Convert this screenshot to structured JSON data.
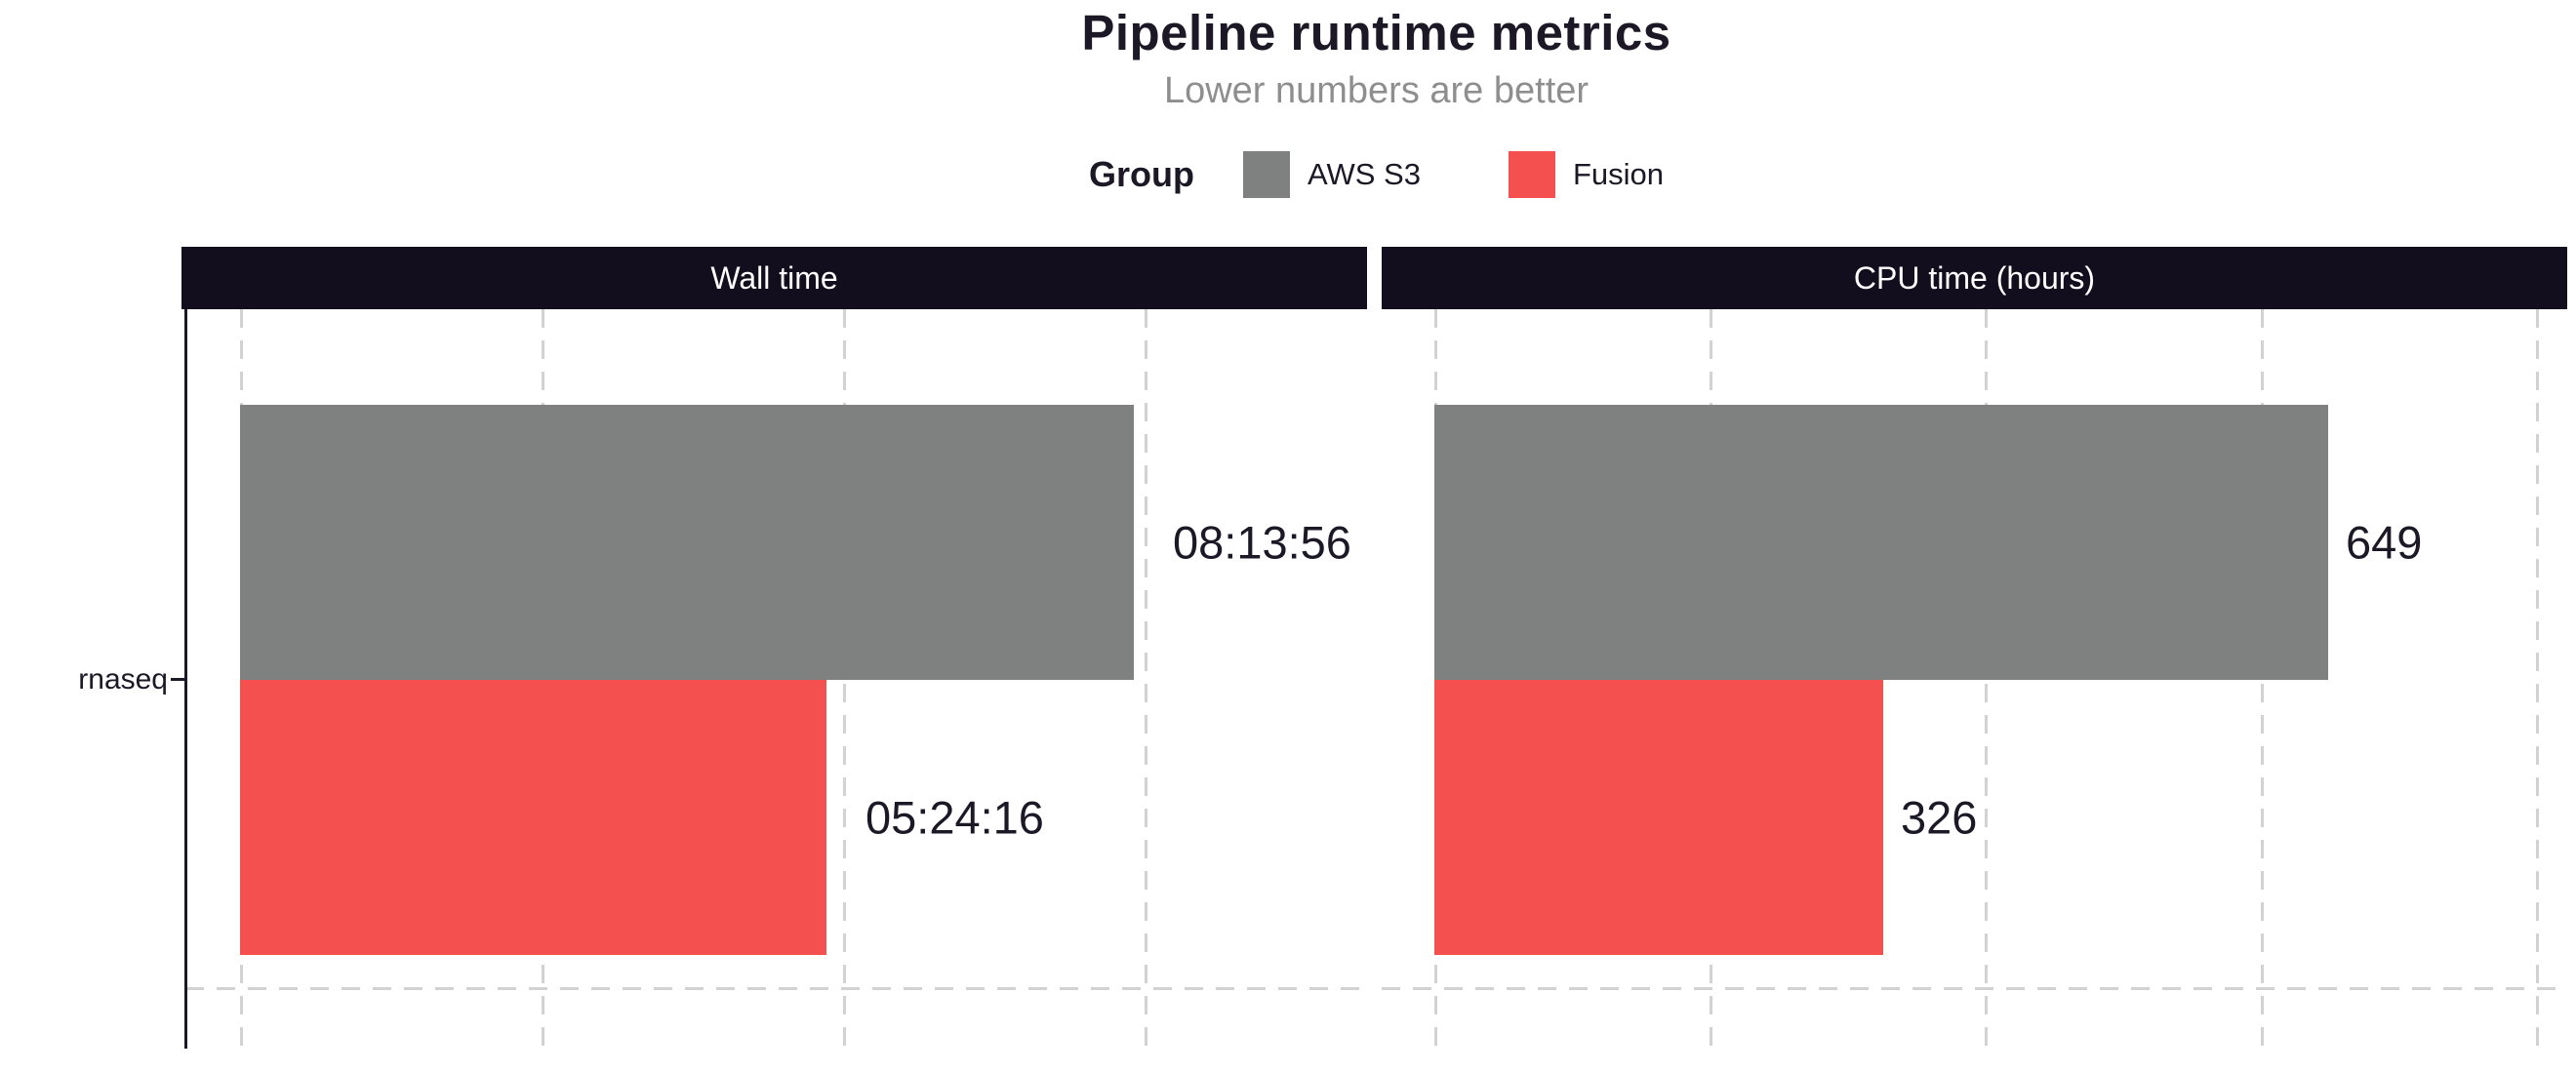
{
  "chart_data": {
    "type": "bar",
    "orientation": "horizontal",
    "title": "Pipeline runtime metrics",
    "subtitle": "Lower numbers are better",
    "categories": [
      "rnaseq"
    ],
    "legend": {
      "title": "Group",
      "position": "top",
      "items": [
        {
          "name": "AWS S3",
          "color": "#7f8080"
        },
        {
          "name": "Fusion",
          "color": "#f4504f"
        }
      ]
    },
    "facets": [
      {
        "title": "Wall time",
        "unit": "seconds",
        "xlim": [
          0,
          37000
        ],
        "gridlines": [
          0,
          10000,
          20000,
          30000
        ],
        "bars": [
          {
            "group": "AWS S3",
            "category": "rnaseq",
            "value": 29636,
            "label": "08:13:56"
          },
          {
            "group": "Fusion",
            "category": "rnaseq",
            "value": 19456,
            "label": "05:24:16"
          }
        ]
      },
      {
        "title": "CPU time (hours)",
        "unit": "hours",
        "xlim": [
          0,
          823
        ],
        "gridlines": [
          0,
          200,
          400,
          600,
          800
        ],
        "bars": [
          {
            "group": "AWS S3",
            "category": "rnaseq",
            "value": 649,
            "label": "649"
          },
          {
            "group": "Fusion",
            "category": "rnaseq",
            "value": 326,
            "label": "326"
          }
        ]
      }
    ],
    "grid": {
      "style": "dashed",
      "direction": "vertical-plus-category-line",
      "color": "#d2d2d2"
    }
  },
  "colors": {
    "aws_s3": "#7f8080",
    "fusion": "#f4504f",
    "strip_background": "#120e1e",
    "strip_text": "#ffffff",
    "text": "#1c1826",
    "subtitle_text": "#8e8e8e",
    "gridline": "#d2d2d2"
  }
}
